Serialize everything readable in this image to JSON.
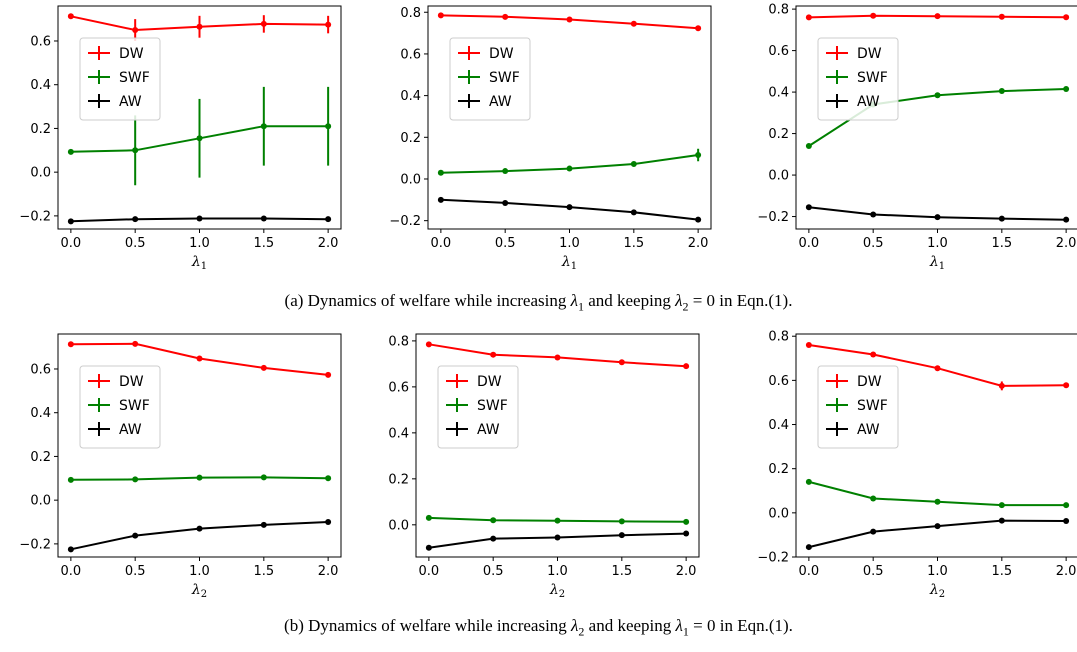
{
  "captions": {
    "a": {
      "prefix": "(a) Dynamics of welfare while increasing ",
      "var1": "λ",
      "sub1": "1",
      "mid": " and keeping ",
      "var2": "λ",
      "sub2": "2",
      "eq": " = 0",
      "suffix": " in Eqn.(1)."
    },
    "b": {
      "prefix": "(b) Dynamics of welfare while increasing ",
      "var1": "λ",
      "sub1": "2",
      "mid": " and keeping ",
      "var2": "λ",
      "sub2": "1",
      "eq": " = 0",
      "suffix": " in Eqn.(1)."
    }
  },
  "colors": {
    "DW": "#ff0000",
    "SWF": "#008000",
    "AW": "#000000"
  },
  "chart_data": [
    {
      "type": "line",
      "xlabel": "λ1",
      "xlabel_var": "λ",
      "xlabel_sub": "1",
      "x": [
        0.0,
        0.5,
        1.0,
        1.5,
        2.0
      ],
      "xticks": [
        "0.0",
        "0.5",
        "1.0",
        "1.5",
        "2.0"
      ],
      "ylim": [
        -0.26,
        0.76
      ],
      "yticks": [
        -0.2,
        0.0,
        0.2,
        0.4,
        0.6
      ],
      "yticklabels": [
        "−0.2",
        "0.0",
        "0.2",
        "0.4",
        "0.6"
      ],
      "legend": "upper-left",
      "series": [
        {
          "name": "DW",
          "values": [
            0.713,
            0.65,
            0.665,
            0.678,
            0.675
          ],
          "err": [
            0.005,
            0.05,
            0.05,
            0.04,
            0.04
          ]
        },
        {
          "name": "SWF",
          "values": [
            0.093,
            0.1,
            0.155,
            0.21,
            0.21
          ],
          "err": [
            0.005,
            0.16,
            0.18,
            0.18,
            0.18
          ]
        },
        {
          "name": "AW",
          "values": [
            -0.225,
            -0.215,
            -0.212,
            -0.212,
            -0.215
          ],
          "err": [
            0.004,
            0.004,
            0.004,
            0.004,
            0.004
          ]
        }
      ]
    },
    {
      "type": "line",
      "xlabel": "λ1",
      "xlabel_var": "λ",
      "xlabel_sub": "1",
      "x": [
        0.0,
        0.5,
        1.0,
        1.5,
        2.0
      ],
      "xticks": [
        "0.0",
        "0.5",
        "1.0",
        "1.5",
        "2.0"
      ],
      "ylim": [
        -0.24,
        0.83
      ],
      "yticks": [
        -0.2,
        0.0,
        0.2,
        0.4,
        0.6,
        0.8
      ],
      "yticklabels": [
        "−0.2",
        "0.0",
        "0.2",
        "0.4",
        "0.6",
        "0.8"
      ],
      "legend": "upper-left",
      "series": [
        {
          "name": "DW",
          "values": [
            0.785,
            0.778,
            0.765,
            0.745,
            0.723
          ],
          "err": [
            0.005,
            0.005,
            0.005,
            0.005,
            0.005
          ]
        },
        {
          "name": "SWF",
          "values": [
            0.03,
            0.038,
            0.05,
            0.072,
            0.115
          ],
          "err": [
            0.004,
            0.004,
            0.006,
            0.008,
            0.03
          ]
        },
        {
          "name": "AW",
          "values": [
            -0.1,
            -0.115,
            -0.135,
            -0.16,
            -0.195
          ],
          "err": [
            0.004,
            0.004,
            0.004,
            0.004,
            0.004
          ]
        }
      ]
    },
    {
      "type": "line",
      "xlabel": "λ1",
      "xlabel_var": "λ",
      "xlabel_sub": "1",
      "x": [
        0.0,
        0.5,
        1.0,
        1.5,
        2.0
      ],
      "xticks": [
        "0.0",
        "0.5",
        "1.0",
        "1.5",
        "2.0"
      ],
      "ylim": [
        -0.26,
        0.815
      ],
      "yticks": [
        -0.2,
        0.0,
        0.2,
        0.4,
        0.6,
        0.8
      ],
      "yticklabels": [
        "−0.2",
        "0.0",
        "0.2",
        "0.4",
        "0.6",
        "0.8"
      ],
      "legend": "upper-left",
      "series": [
        {
          "name": "DW",
          "values": [
            0.76,
            0.768,
            0.766,
            0.763,
            0.761
          ],
          "err": [
            0.004,
            0.004,
            0.004,
            0.004,
            0.004
          ]
        },
        {
          "name": "SWF",
          "values": [
            0.14,
            0.34,
            0.385,
            0.405,
            0.415
          ],
          "err": [
            0.004,
            0.004,
            0.004,
            0.004,
            0.004
          ]
        },
        {
          "name": "AW",
          "values": [
            -0.155,
            -0.19,
            -0.203,
            -0.21,
            -0.215
          ],
          "err": [
            0.004,
            0.004,
            0.004,
            0.004,
            0.004
          ]
        }
      ]
    },
    {
      "type": "line",
      "xlabel": "λ2",
      "xlabel_var": "λ",
      "xlabel_sub": "2",
      "x": [
        0.0,
        0.5,
        1.0,
        1.5,
        2.0
      ],
      "xticks": [
        "0.0",
        "0.5",
        "1.0",
        "1.5",
        "2.0"
      ],
      "ylim": [
        -0.26,
        0.76
      ],
      "yticks": [
        -0.2,
        0.0,
        0.2,
        0.4,
        0.6
      ],
      "yticklabels": [
        "−0.2",
        "0.0",
        "0.2",
        "0.4",
        "0.6"
      ],
      "legend": "upper-left",
      "series": [
        {
          "name": "DW",
          "values": [
            0.713,
            0.715,
            0.648,
            0.605,
            0.573
          ],
          "err": [
            0.004,
            0.004,
            0.004,
            0.004,
            0.004
          ]
        },
        {
          "name": "SWF",
          "values": [
            0.093,
            0.095,
            0.103,
            0.104,
            0.1
          ],
          "err": [
            0.004,
            0.004,
            0.004,
            0.004,
            0.004
          ]
        },
        {
          "name": "AW",
          "values": [
            -0.225,
            -0.162,
            -0.13,
            -0.113,
            -0.1
          ],
          "err": [
            0.004,
            0.004,
            0.004,
            0.004,
            0.004
          ]
        }
      ]
    },
    {
      "type": "line",
      "xlabel": "λ2",
      "xlabel_var": "λ",
      "xlabel_sub": "2",
      "x": [
        0.0,
        0.5,
        1.0,
        1.5,
        2.0
      ],
      "xticks": [
        "0.0",
        "0.5",
        "1.0",
        "1.5",
        "2.0"
      ],
      "ylim": [
        -0.14,
        0.83
      ],
      "yticks": [
        0.0,
        0.2,
        0.4,
        0.6,
        0.8
      ],
      "yticklabels": [
        "0.0",
        "0.2",
        "0.4",
        "0.6",
        "0.8"
      ],
      "legend": "upper-left",
      "series": [
        {
          "name": "DW",
          "values": [
            0.785,
            0.74,
            0.728,
            0.707,
            0.69
          ],
          "err": [
            0.004,
            0.004,
            0.004,
            0.004,
            0.004
          ]
        },
        {
          "name": "SWF",
          "values": [
            0.03,
            0.02,
            0.018,
            0.015,
            0.013
          ],
          "err": [
            0.004,
            0.004,
            0.004,
            0.004,
            0.004
          ]
        },
        {
          "name": "AW",
          "values": [
            -0.1,
            -0.06,
            -0.055,
            -0.045,
            -0.038
          ],
          "err": [
            0.004,
            0.004,
            0.004,
            0.004,
            0.004
          ]
        }
      ]
    },
    {
      "type": "line",
      "xlabel": "λ2",
      "xlabel_var": "λ",
      "xlabel_sub": "2",
      "x": [
        0.0,
        0.5,
        1.0,
        1.5,
        2.0
      ],
      "xticks": [
        "0.0",
        "0.5",
        "1.0",
        "1.5",
        "2.0"
      ],
      "ylim": [
        -0.2,
        0.81
      ],
      "yticks": [
        -0.2,
        0.0,
        0.2,
        0.4,
        0.6,
        0.8
      ],
      "yticklabels": [
        "−0.2",
        "0.0",
        "0.2",
        "0.4",
        "0.6",
        "0.8"
      ],
      "legend": "upper-left",
      "series": [
        {
          "name": "DW",
          "values": [
            0.76,
            0.717,
            0.655,
            0.575,
            0.578
          ],
          "err": [
            0.004,
            0.004,
            0.004,
            0.02,
            0.004
          ]
        },
        {
          "name": "SWF",
          "values": [
            0.14,
            0.065,
            0.05,
            0.035,
            0.035
          ],
          "err": [
            0.004,
            0.004,
            0.004,
            0.004,
            0.004
          ]
        },
        {
          "name": "AW",
          "values": [
            -0.155,
            -0.085,
            -0.06,
            -0.035,
            -0.037
          ],
          "err": [
            0.004,
            0.004,
            0.004,
            0.004,
            0.004
          ]
        }
      ]
    }
  ]
}
